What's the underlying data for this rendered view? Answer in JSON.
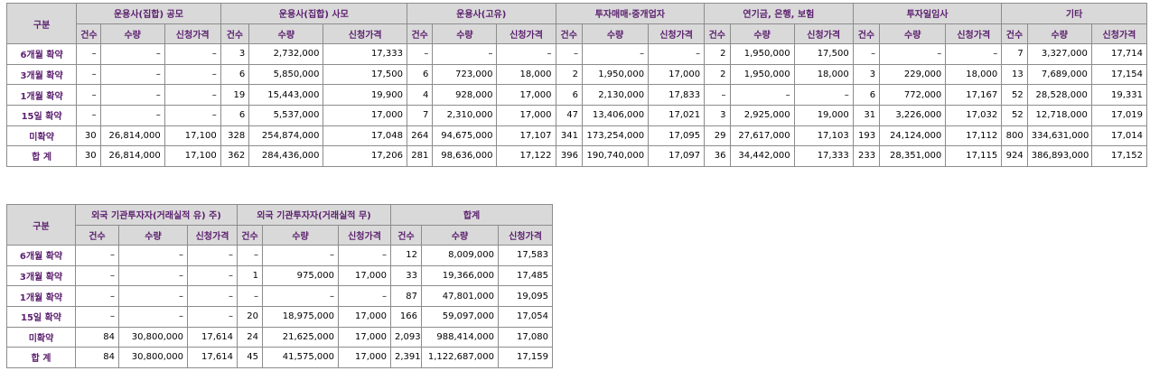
{
  "table1": {
    "corner": "구분",
    "groups": [
      "운용사(집합) 공모",
      "운용사(집합) 사모",
      "운용사(고유)",
      "투자매매·중개업자",
      "연기금, 은행, 보험",
      "투자일임사",
      "기타"
    ],
    "subheaders": [
      "건수",
      "수량",
      "신청가격"
    ],
    "rows": [
      {
        "label": "6개월 확약",
        "cells": [
          "–",
          "–",
          "–",
          "3",
          "2,732,000",
          "17,333",
          "–",
          "–",
          "–",
          "–",
          "–",
          "–",
          "2",
          "1,950,000",
          "17,500",
          "–",
          "–",
          "–",
          "7",
          "3,327,000",
          "17,714"
        ]
      },
      {
        "label": "3개월 확약",
        "cells": [
          "–",
          "–",
          "–",
          "6",
          "5,850,000",
          "17,500",
          "6",
          "723,000",
          "18,000",
          "2",
          "1,950,000",
          "17,000",
          "2",
          "1,950,000",
          "18,000",
          "3",
          "229,000",
          "18,000",
          "13",
          "7,689,000",
          "17,154"
        ]
      },
      {
        "label": "1개월 확약",
        "cells": [
          "–",
          "–",
          "–",
          "19",
          "15,443,000",
          "19,900",
          "4",
          "928,000",
          "17,000",
          "6",
          "2,130,000",
          "17,833",
          "–",
          "–",
          "–",
          "6",
          "772,000",
          "17,167",
          "52",
          "28,528,000",
          "19,331"
        ]
      },
      {
        "label": "15일 확약",
        "cells": [
          "–",
          "–",
          "–",
          "6",
          "5,537,000",
          "17,000",
          "7",
          "2,310,000",
          "17,000",
          "47",
          "13,406,000",
          "17,021",
          "3",
          "2,925,000",
          "19,000",
          "31",
          "3,226,000",
          "17,032",
          "52",
          "12,718,000",
          "17,019"
        ]
      },
      {
        "label": "미확약",
        "cells": [
          "30",
          "26,814,000",
          "17,100",
          "328",
          "254,874,000",
          "17,048",
          "264",
          "94,675,000",
          "17,107",
          "341",
          "173,254,000",
          "17,095",
          "29",
          "27,617,000",
          "17,103",
          "193",
          "24,124,000",
          "17,112",
          "800",
          "334,631,000",
          "17,014"
        ]
      },
      {
        "label": "합 계",
        "cells": [
          "30",
          "26,814,000",
          "17,100",
          "362",
          "284,436,000",
          "17,206",
          "281",
          "98,636,000",
          "17,122",
          "396",
          "190,740,000",
          "17,097",
          "36",
          "34,442,000",
          "17,333",
          "233",
          "28,351,000",
          "17,115",
          "924",
          "386,893,000",
          "17,152"
        ]
      }
    ]
  },
  "table2": {
    "corner": "구분",
    "groups": [
      "외국 기관투자자(거래실적 유) 주)",
      "외국 기관투자자(거래실적 무)",
      "합계"
    ],
    "subheaders": [
      "건수",
      "수량",
      "신청가격"
    ],
    "rows": [
      {
        "label": "6개월 확약",
        "cells": [
          "–",
          "–",
          "–",
          "–",
          "–",
          "–",
          "12",
          "8,009,000",
          "17,583"
        ]
      },
      {
        "label": "3개월 확약",
        "cells": [
          "–",
          "–",
          "–",
          "1",
          "975,000",
          "17,000",
          "33",
          "19,366,000",
          "17,485"
        ]
      },
      {
        "label": "1개월 확약",
        "cells": [
          "–",
          "–",
          "–",
          "–",
          "–",
          "–",
          "87",
          "47,801,000",
          "19,095"
        ]
      },
      {
        "label": "15일 확약",
        "cells": [
          "–",
          "–",
          "–",
          "20",
          "18,975,000",
          "17,000",
          "166",
          "59,097,000",
          "17,054"
        ]
      },
      {
        "label": "미확약",
        "cells": [
          "84",
          "30,800,000",
          "17,614",
          "24",
          "21,625,000",
          "17,000",
          "2,093",
          "988,414,000",
          "17,080"
        ]
      },
      {
        "label": "합 계",
        "cells": [
          "84",
          "30,800,000",
          "17,614",
          "45",
          "41,575,000",
          "17,000",
          "2,391",
          "1,122,687,000",
          "17,159"
        ]
      }
    ]
  }
}
